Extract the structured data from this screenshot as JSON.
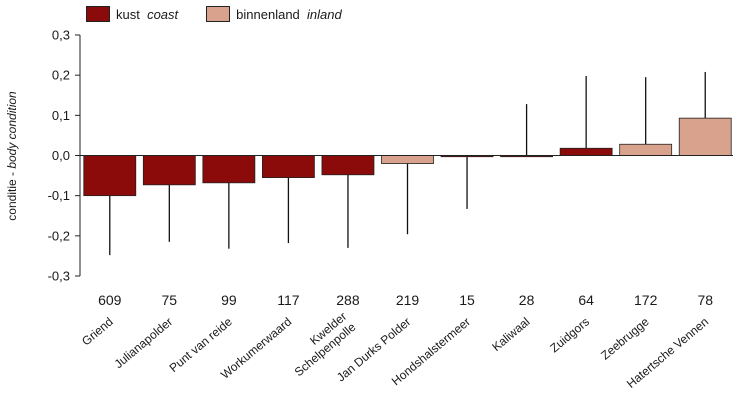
{
  "legend": {
    "coast_nl": "kust",
    "coast_en": "coast",
    "inland_nl": "binnenland",
    "inland_en": "inland"
  },
  "colors": {
    "coast": "#8b0a0a",
    "inland": "#d9a28c"
  },
  "chart_data": {
    "type": "bar",
    "ylabel_nl": "conditie -",
    "ylabel_en": "body condition",
    "ylim": [
      -0.3,
      0.3
    ],
    "yticks": [
      "-0,3",
      "-0,2",
      "-0,1",
      "0,0",
      "0,1",
      "0,2",
      "0,3"
    ],
    "grid": false,
    "legend_position": "top-left",
    "categories": [
      "Griend",
      "Julianapolder",
      "Punt van reide",
      "Workumerwaard",
      "Kwelder\nSchelpenpolle",
      "Jan Durks Polder",
      "Hondshalstermeer",
      "Kaliwaal",
      "Zuidgors",
      "Zeebrugge",
      "Hatertsche Vennen"
    ],
    "counts": [
      "609",
      "75",
      "99",
      "117",
      "288",
      "219",
      "15",
      "28",
      "64",
      "172",
      "78"
    ],
    "values": [
      -0.1,
      -0.073,
      -0.068,
      -0.055,
      -0.048,
      -0.02,
      -0.003,
      -0.002,
      0.018,
      0.028,
      0.093
    ],
    "error_bar_ends": [
      -0.248,
      -0.215,
      -0.232,
      -0.218,
      -0.23,
      -0.196,
      -0.133,
      0.128,
      0.198,
      0.195,
      0.208
    ],
    "habitat": [
      "coast",
      "coast",
      "coast",
      "coast",
      "coast",
      "inland",
      "coast",
      "coast",
      "coast",
      "inland",
      "inland"
    ]
  }
}
